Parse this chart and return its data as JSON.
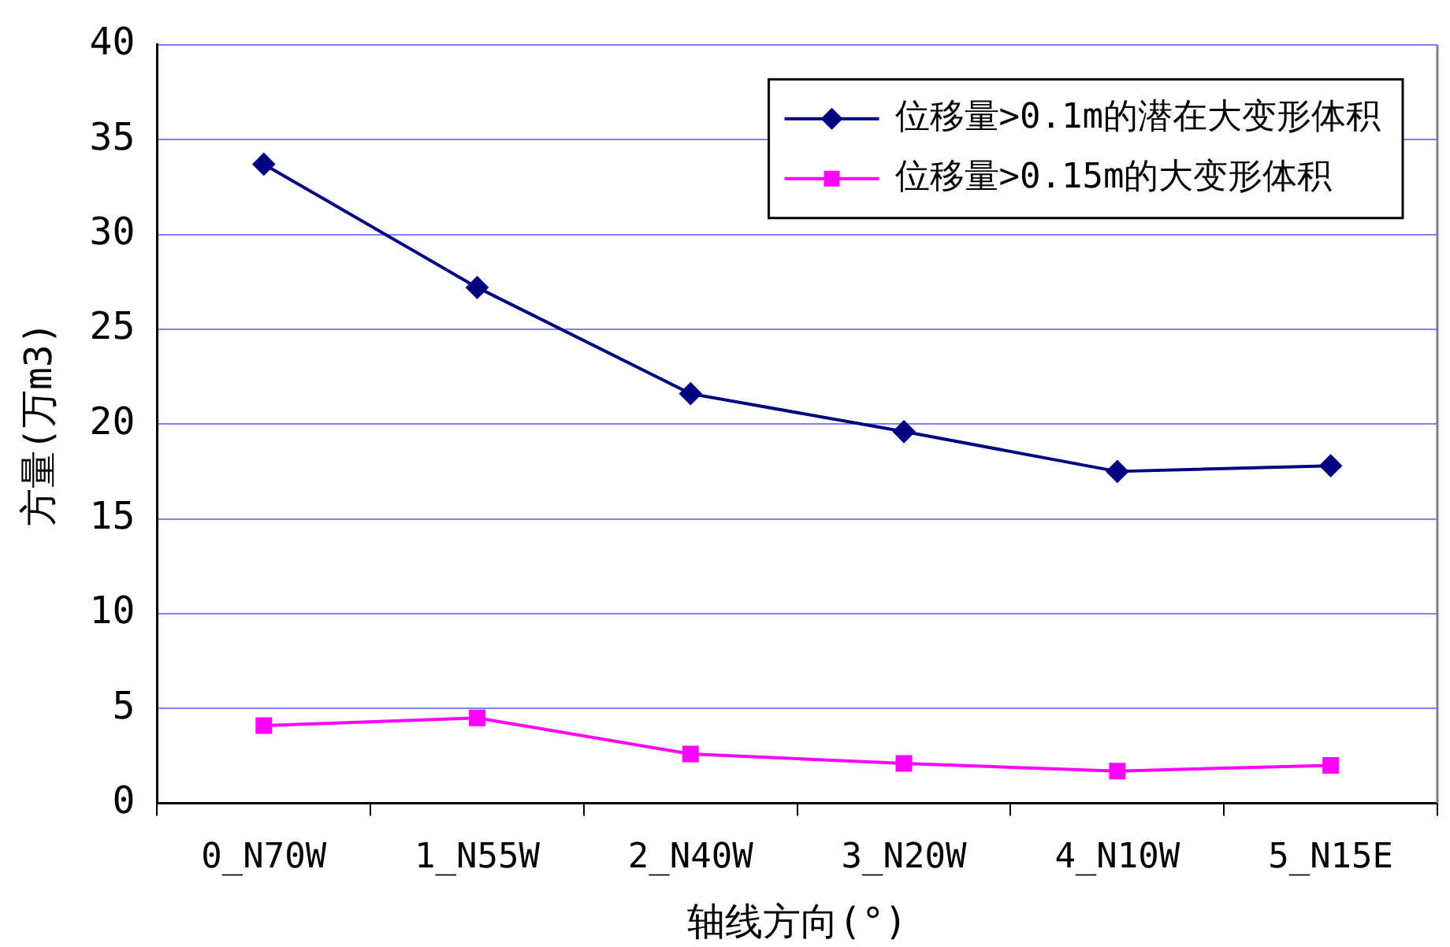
{
  "chart_data": {
    "type": "line",
    "xlabel": "轴线方向(°)",
    "ylabel": "方量(万m3)",
    "categories": [
      "0_N70W",
      "1_N55W",
      "2_N40W",
      "3_N20W",
      "4_N10W",
      "5_N15E"
    ],
    "series": [
      {
        "name": "位移量>0.1m的潜在大变形体积",
        "color": "#000080",
        "marker": "diamond",
        "values": [
          33.7,
          27.2,
          21.6,
          19.6,
          17.5,
          17.8
        ]
      },
      {
        "name": "位移量>0.15m的大变形体积",
        "color": "#ff00ff",
        "marker": "square",
        "values": [
          4.1,
          4.5,
          2.6,
          2.1,
          1.7,
          2.0
        ]
      }
    ],
    "ylim": [
      0,
      40
    ],
    "yticks": [
      0,
      5,
      10,
      15,
      20,
      25,
      30,
      35,
      40
    ],
    "grid": "y",
    "legend": "top right",
    "line_style": "solid"
  }
}
